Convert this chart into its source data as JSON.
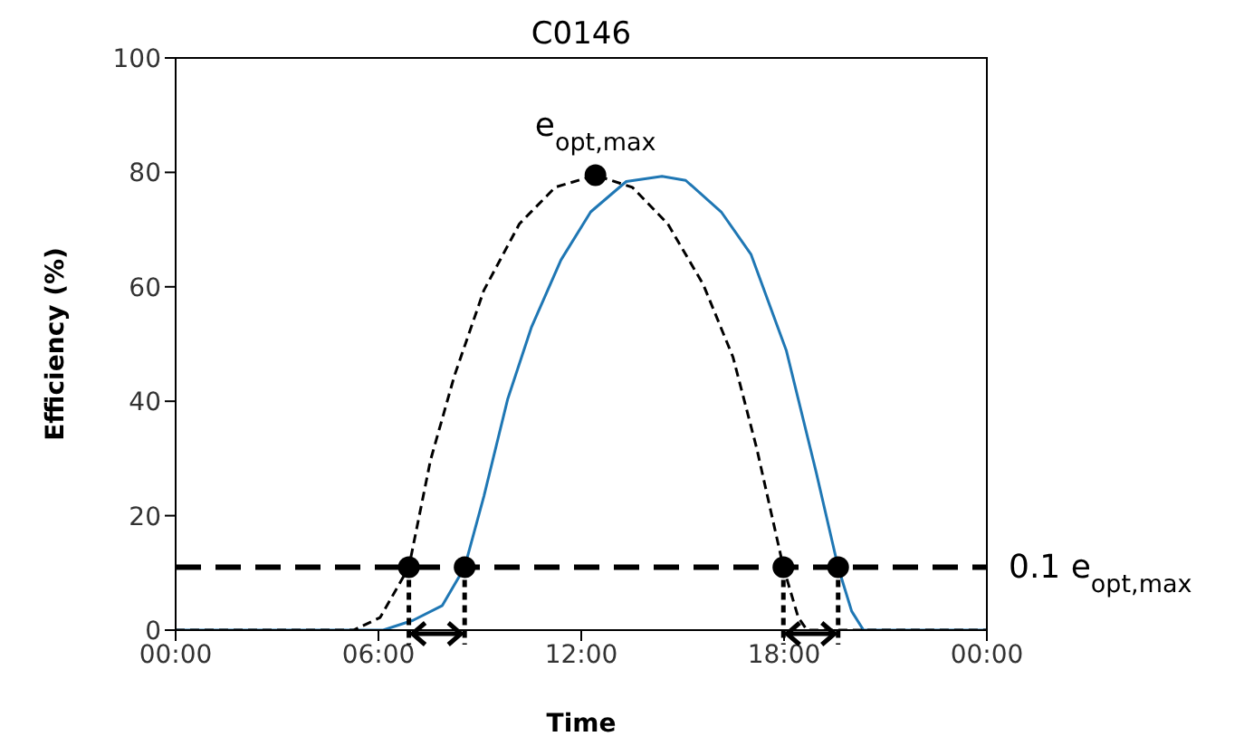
{
  "chart_data": {
    "type": "line",
    "title": "C0146",
    "xlabel": "Time",
    "ylabel": "Efficiency (%)",
    "xlim": [
      0,
      24
    ],
    "xticks": [
      {
        "value": 0,
        "label": "00:00"
      },
      {
        "value": 6,
        "label": "06:00"
      },
      {
        "value": 12,
        "label": "12:00"
      },
      {
        "value": 18,
        "label": "18:00"
      },
      {
        "value": 24,
        "label": "00:00"
      }
    ],
    "ylim": [
      0,
      100
    ],
    "yticks": [
      0,
      20,
      40,
      60,
      80,
      100
    ],
    "series": [
      {
        "color": "#1f77b4",
        "line_style": "solid",
        "x": [
          0,
          6.14,
          7.02,
          7.89,
          8.55,
          9.12,
          9.82,
          10.53,
          11.4,
          12.28,
          13.33,
          14.39,
          15.09,
          16.14,
          17.02,
          18.07,
          18.95,
          19.6,
          20,
          20.35,
          24
        ],
        "values": [
          0,
          0,
          1.7,
          4.3,
          11,
          23.4,
          40.3,
          53,
          64.7,
          73.1,
          78.4,
          79.3,
          78.6,
          73.1,
          65.7,
          48.8,
          27.6,
          11,
          3.3,
          0,
          0
        ]
      },
      {
        "color": "#000000",
        "line_style": "dashed",
        "x": [
          0,
          5.26,
          6.05,
          6.9,
          7.54,
          8.25,
          9.12,
          10.17,
          11.23,
          12.42,
          13.51,
          14.56,
          15.61,
          16.49,
          17.19,
          17.98,
          18.42,
          18.68,
          24
        ],
        "values": [
          0,
          0,
          2.2,
          11,
          29.7,
          44.5,
          59.4,
          71,
          77.4,
          79.5,
          77.4,
          71,
          60.4,
          47.7,
          31.8,
          11,
          2.2,
          0,
          0
        ]
      },
      {
        "type": "scatter",
        "color": "#000000",
        "marker": "circle",
        "x": [
          6.9,
          8.55,
          12.42,
          17.98,
          19.6
        ],
        "values": [
          11,
          11,
          79.5,
          11,
          11
        ]
      }
    ],
    "ref_lines": [
      {
        "axis": "y",
        "value": 11,
        "label": "0.1 e$_{opt,max}$",
        "color": "#000000",
        "line_style": "dashed"
      }
    ],
    "annotations": [
      {
        "text": "e$_{opt,max}$",
        "x": 12.42,
        "y": 79.5
      }
    ]
  }
}
